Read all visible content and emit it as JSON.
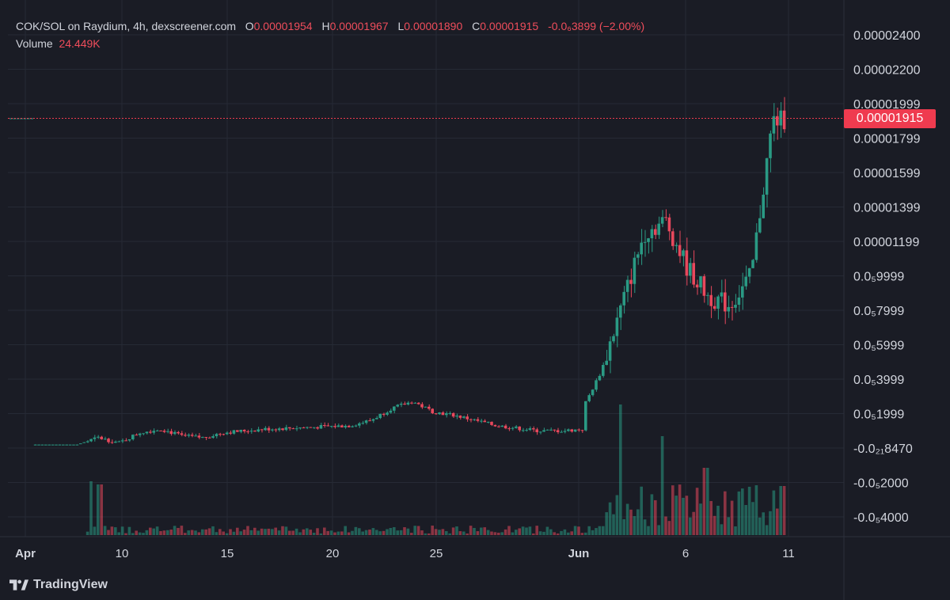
{
  "legend": {
    "pair": "COK/SOL on Raydium, 4h, dexscreener.com",
    "o_label": "O",
    "o_value": "0.00001954",
    "h_label": "H",
    "h_value": "0.00001967",
    "l_label": "L",
    "l_value": "0.00001890",
    "c_label": "C",
    "c_value": "0.00001915",
    "change": "-0.0₆3899 (−2.00%)",
    "volume_label": "Volume",
    "volume_value": "24.449K"
  },
  "current_price_label": "0.00001915",
  "footer": {
    "brand": "TradingView",
    "logo_icon": "tradingview-logo-icon"
  },
  "colors": {
    "up": "#2a9a84",
    "down": "#e8485c",
    "background": "#1a1c25",
    "price_line": "#ef3b4f"
  },
  "chart_data": {
    "type": "candlestick",
    "title": "COK/SOL on Raydium, 4h, dexscreener.com",
    "y_ticks": [
      "0.00002400",
      "0.00002200",
      "0.00001999",
      "0.00001799",
      "0.00001599",
      "0.00001399",
      "0.00001199",
      "0.0₅9999",
      "0.0₅7999",
      "0.0₅5999",
      "0.0₅3999",
      "0.0₅1999",
      "-0.0₂₁8470",
      "-0.0₅2000",
      "-0.0₅4000"
    ],
    "x_ticks": [
      "Apr",
      "10",
      "15",
      "20",
      "25",
      "Jun",
      "6",
      "11"
    ],
    "ylim": [
      -4e-06,
      2.4e-05
    ],
    "last_close": 1.915e-05,
    "grid": true,
    "series": [
      {
        "name": "Price",
        "anchors": [
          {
            "date": "Apr 6",
            "close": 2e-07
          },
          {
            "date": "Apr 8",
            "close": 2e-07
          },
          {
            "date": "Apr 9",
            "close": 6e-07
          },
          {
            "date": "Apr 10",
            "close": 3e-07
          },
          {
            "date": "Apr 11",
            "close": 9e-07
          },
          {
            "date": "Apr 12",
            "close": 1.1e-06
          },
          {
            "date": "Apr 13",
            "close": 7e-07
          },
          {
            "date": "Apr 14",
            "close": 6e-07
          },
          {
            "date": "Apr 15",
            "close": 9e-07
          },
          {
            "date": "Apr 17",
            "close": 1.1e-06
          },
          {
            "date": "Apr 19",
            "close": 1.2e-06
          },
          {
            "date": "Apr 21",
            "close": 1.3e-06
          },
          {
            "date": "Apr 22",
            "close": 1.6e-06
          },
          {
            "date": "Apr 23",
            "close": 2.3e-06
          },
          {
            "date": "Apr 24",
            "close": 2.7e-06
          },
          {
            "date": "Apr 25",
            "close": 2.1e-06
          },
          {
            "date": "Apr 26",
            "close": 1.9e-06
          },
          {
            "date": "Apr 28",
            "close": 1.3e-06
          },
          {
            "date": "Apr 30",
            "close": 1e-06
          },
          {
            "date": "May 1",
            "close": 1e-06
          },
          {
            "date": "May 2",
            "close": 1.1e-06
          },
          {
            "date": "Jun 1",
            "close": 2e-06
          },
          {
            "date": "Jun 2",
            "close": 4.5e-06
          },
          {
            "date": "Jun 3",
            "close": 8.5e-06
          },
          {
            "date": "Jun 4",
            "close": 1.25e-05
          },
          {
            "date": "Jun 5",
            "close": 1.32e-05
          },
          {
            "date": "Jun 6",
            "close": 1.05e-05
          },
          {
            "date": "Jun 7",
            "close": 8.8e-06
          },
          {
            "date": "Jun 8",
            "close": 8.3e-06
          },
          {
            "date": "Jun 9",
            "close": 1e-05
          },
          {
            "date": "Jun 10",
            "close": 1.9e-05
          },
          {
            "date": "Jun 11",
            "close": 1.915e-05
          }
        ]
      },
      {
        "name": "Volume",
        "peaks": [
          {
            "date": "Apr 9",
            "value": "high"
          },
          {
            "date": "Jun 2",
            "value": "highest"
          },
          {
            "date": "Jun 5",
            "value": "high"
          },
          {
            "date": "Jun 8",
            "value": "high"
          },
          {
            "date": "Jun 10",
            "value": "high"
          }
        ]
      }
    ]
  }
}
